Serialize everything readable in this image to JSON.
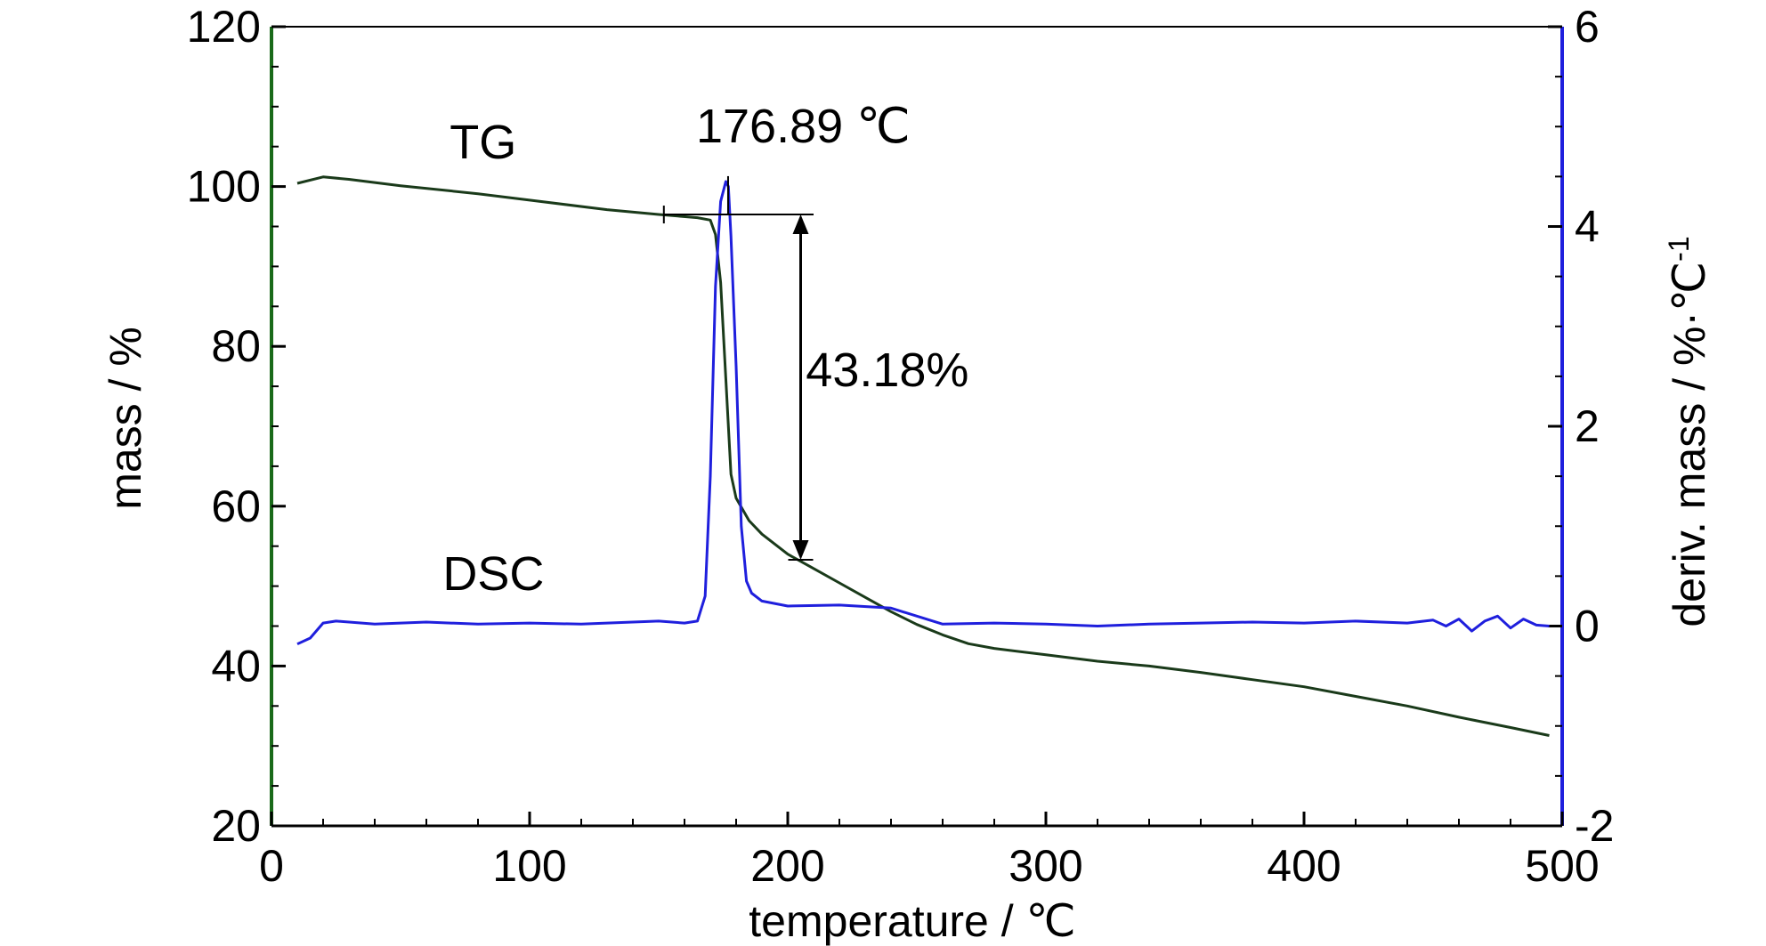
{
  "chart_data": {
    "type": "line",
    "xlabel": "temperature / ℃",
    "ylabel_left": "mass / %",
    "ylabel_right": "deriv. mass / %·℃",
    "ylabel_right_sup": "-1",
    "xlim": [
      0,
      500
    ],
    "ylim_left": [
      20,
      120
    ],
    "ylim_right": [
      -2,
      6
    ],
    "x_ticks": [
      "0",
      "100",
      "200",
      "300",
      "400",
      "500"
    ],
    "y_left_ticks": [
      "20",
      "40",
      "60",
      "80",
      "100",
      "120"
    ],
    "y_right_ticks": [
      "-2",
      "0",
      "2",
      "4",
      "6"
    ],
    "grid": false,
    "legend": "none",
    "series": [
      {
        "name": "TG",
        "axis": "left",
        "color": "#1a3a1a",
        "x": [
          10,
          20,
          30,
          50,
          80,
          100,
          130,
          150,
          165,
          170,
          172,
          174,
          176,
          178,
          180,
          185,
          190,
          200,
          210,
          220,
          230,
          240,
          250,
          260,
          270,
          280,
          300,
          320,
          340,
          360,
          380,
          400,
          420,
          440,
          460,
          480,
          495
        ],
        "y": [
          100.4,
          101.2,
          100.9,
          100.1,
          99.1,
          98.3,
          97.1,
          96.5,
          96.1,
          95.8,
          94.0,
          88.0,
          76.0,
          64.0,
          61.0,
          58.2,
          56.5,
          54.0,
          52.2,
          50.4,
          48.6,
          46.8,
          45.2,
          43.9,
          42.8,
          42.2,
          41.4,
          40.6,
          40.0,
          39.2,
          38.3,
          37.4,
          36.2,
          35.0,
          33.6,
          32.3,
          31.3
        ]
      },
      {
        "name": "DSC",
        "axis": "right",
        "color": "#1f1fdd",
        "x": [
          10,
          15,
          20,
          25,
          40,
          60,
          80,
          100,
          120,
          140,
          150,
          160,
          165,
          168,
          170,
          172,
          174,
          176,
          177,
          178,
          180,
          182,
          184,
          186,
          190,
          200,
          220,
          240,
          260,
          280,
          300,
          320,
          340,
          360,
          380,
          400,
          420,
          440,
          450,
          455,
          460,
          465,
          470,
          475,
          480,
          485,
          490,
          495
        ],
        "y": [
          -0.18,
          -0.12,
          0.03,
          0.05,
          0.02,
          0.04,
          0.02,
          0.03,
          0.02,
          0.04,
          0.05,
          0.03,
          0.05,
          0.3,
          1.5,
          3.4,
          4.25,
          4.45,
          4.4,
          3.9,
          2.6,
          1.0,
          0.45,
          0.33,
          0.25,
          0.2,
          0.21,
          0.18,
          0.02,
          0.03,
          0.02,
          0.0,
          0.02,
          0.03,
          0.04,
          0.03,
          0.05,
          0.03,
          0.06,
          0.0,
          0.07,
          -0.05,
          0.05,
          0.1,
          -0.02,
          0.07,
          0.01,
          0.0
        ]
      }
    ],
    "annotations": [
      {
        "text": "TG",
        "x": 82,
        "y": 103.5,
        "axis": "left"
      },
      {
        "text": "DSC",
        "x": 86,
        "y": 49.5,
        "axis": "left"
      },
      {
        "text": "176.89 ℃",
        "x": 206,
        "y": 105.5,
        "axis": "left"
      },
      {
        "text": "43.18%",
        "x": 207,
        "y": 75,
        "axis": "left"
      }
    ],
    "markers": {
      "onset_line": {
        "x1": 152,
        "x2": 210,
        "y": 96.5
      },
      "peak_line": {
        "x": 176.89,
        "y1": 96.5,
        "y2": 101.3
      },
      "mass_loss_arrow": {
        "x": 205,
        "y_top": 96.5,
        "y_bottom": 53.3
      }
    }
  }
}
